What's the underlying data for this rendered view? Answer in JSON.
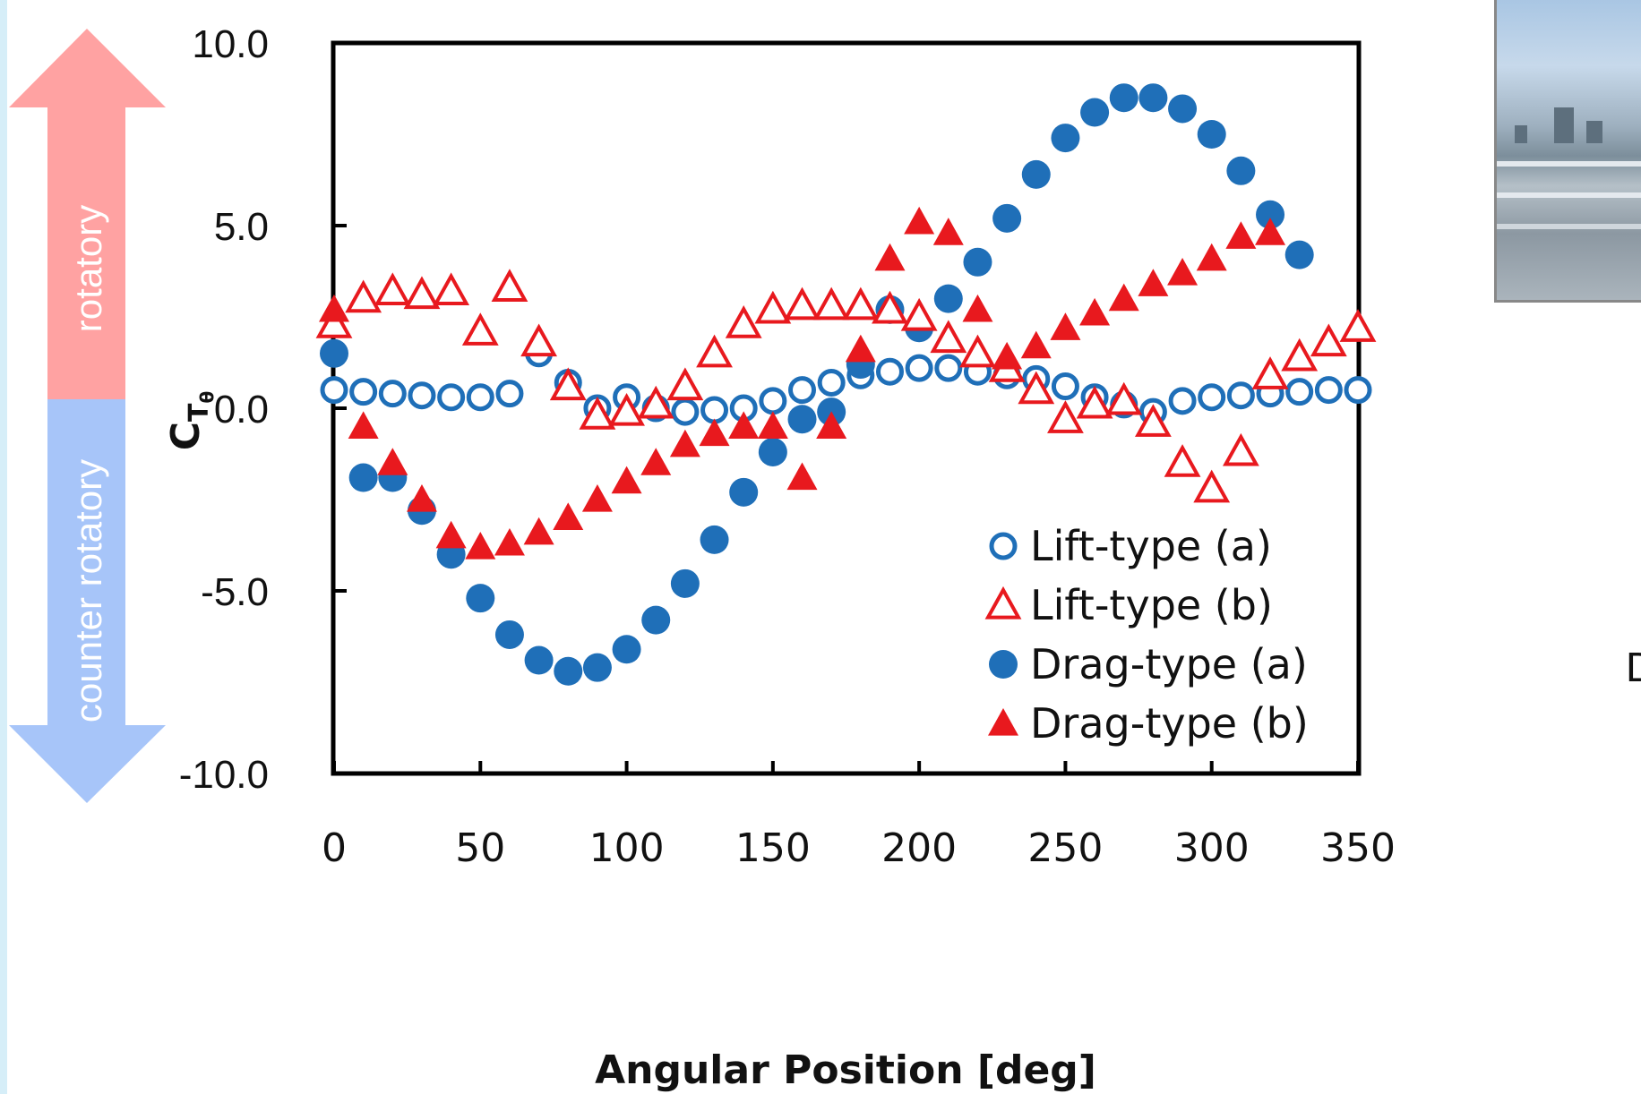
{
  "chart_data": {
    "type": "scatter",
    "xlabel": "Angular Position [deg]",
    "ylabel_main": "C",
    "ylabel_sub1": "T",
    "ylabel_sub2": "θ",
    "xlim": [
      0,
      350
    ],
    "ylim": [
      -10,
      10
    ],
    "x_ticks": [
      "0",
      "50",
      "100",
      "150",
      "200",
      "250",
      "300",
      "350"
    ],
    "y_ticks": [
      "10.0",
      "5.0",
      "0.0",
      "-5.0",
      "-10.0"
    ],
    "grid": false,
    "legend_position": "bottom-right",
    "x": [
      0,
      10,
      20,
      30,
      40,
      50,
      60,
      70,
      80,
      90,
      100,
      110,
      120,
      130,
      140,
      150,
      160,
      170,
      180,
      190,
      200,
      210,
      220,
      230,
      240,
      250,
      260,
      270,
      280,
      290,
      300,
      310,
      320,
      330,
      340,
      350
    ],
    "series": [
      {
        "name": "Lift-type (a)",
        "marker": "open-circle",
        "color": "#1f6fb8",
        "values": [
          0.5,
          0.45,
          0.4,
          0.35,
          0.3,
          0.3,
          0.4,
          1.5,
          0.7,
          0.0,
          0.3,
          0.0,
          -0.1,
          -0.05,
          0.0,
          0.2,
          0.5,
          0.7,
          0.9,
          1.0,
          1.1,
          1.1,
          1.0,
          0.9,
          0.8,
          0.6,
          0.3,
          0.1,
          -0.1,
          0.2,
          0.3,
          0.35,
          0.4,
          0.45,
          0.5,
          0.5
        ]
      },
      {
        "name": "Lift-type (b)",
        "marker": "open-triangle",
        "color": "#e8191e",
        "values": [
          2.3,
          3.0,
          3.2,
          3.1,
          3.2,
          2.1,
          3.3,
          1.8,
          0.6,
          -0.2,
          -0.1,
          0.1,
          0.6,
          1.5,
          2.3,
          2.7,
          2.8,
          2.8,
          2.8,
          2.7,
          2.5,
          1.9,
          1.5,
          1.1,
          0.5,
          -0.3,
          0.1,
          0.2,
          -0.4,
          -1.5,
          -2.2,
          -1.2,
          0.9,
          1.4,
          1.8,
          2.2
        ]
      },
      {
        "name": "Drag-type (a)",
        "marker": "filled-circle",
        "color": "#1f6fb8",
        "values": [
          1.5,
          -1.9,
          -1.9,
          -2.8,
          -4.0,
          -5.2,
          -6.2,
          -6.9,
          -7.2,
          -7.1,
          -6.6,
          -5.8,
          -4.8,
          -3.6,
          -2.3,
          -1.2,
          -0.3,
          -0.1,
          1.2,
          2.7,
          2.2,
          3.0,
          4.0,
          5.2,
          6.4,
          7.4,
          8.1,
          8.5,
          8.5,
          8.2,
          7.5,
          6.5,
          5.3,
          4.2,
          null,
          null
        ]
      },
      {
        "name": "Drag-type (b)",
        "marker": "filled-triangle",
        "color": "#e8191e",
        "values": [
          2.7,
          -0.5,
          -1.5,
          -2.5,
          -3.5,
          -3.8,
          -3.7,
          -3.4,
          -3.0,
          -2.5,
          -2.0,
          -1.5,
          -1.0,
          -0.7,
          -0.5,
          -0.5,
          -1.9,
          -0.5,
          1.6,
          4.1,
          5.1,
          4.8,
          2.7,
          1.4,
          1.7,
          2.2,
          2.6,
          3.0,
          3.4,
          3.7,
          4.1,
          4.7,
          4.8,
          null,
          null,
          null
        ]
      }
    ]
  },
  "arrow": {
    "top_label": "rotatory",
    "bottom_label": "counter rotatory",
    "top_color": "#ffa2a2",
    "bottom_color": "#a7c5f9"
  },
  "side_text": "Dr",
  "icons": {
    "photo": "wind-turbine-rooftop-photo"
  }
}
